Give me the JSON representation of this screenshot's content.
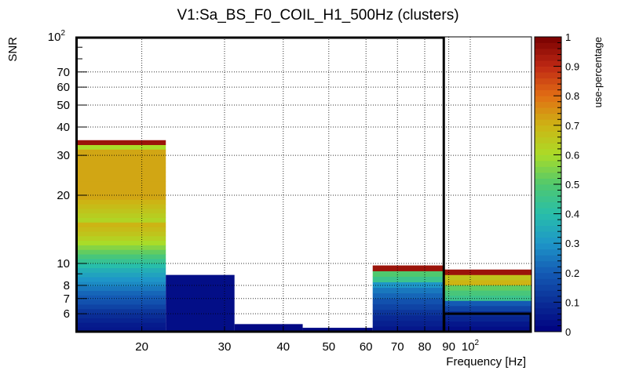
{
  "chart_data": {
    "type": "heatmap",
    "title": "V1:Sa_BS_F0_COIL_H1_500Hz (clusters)",
    "xlabel": "Frequency [Hz]",
    "ylabel": "SNR",
    "colorbar_label": "use-percentage",
    "x_scale": "log",
    "y_scale": "log",
    "xlim": [
      14.5,
      135
    ],
    "ylim": [
      5,
      100
    ],
    "x_ticks": [
      {
        "value": 20,
        "label": "20"
      },
      {
        "value": 30,
        "label": "30"
      },
      {
        "value": 40,
        "label": "40"
      },
      {
        "value": 50,
        "label": "50"
      },
      {
        "value": 60,
        "label": "60"
      },
      {
        "value": 70,
        "label": "70"
      },
      {
        "value": 80,
        "label": "80"
      },
      {
        "value": 90,
        "label": "90"
      },
      {
        "value": 100,
        "label": "10",
        "sup": "2"
      }
    ],
    "y_ticks": [
      {
        "value": 6,
        "label": "6"
      },
      {
        "value": 7,
        "label": "7"
      },
      {
        "value": 8,
        "label": "8"
      },
      {
        "value": 10,
        "label": "10"
      },
      {
        "value": 20,
        "label": "20"
      },
      {
        "value": 30,
        "label": "30"
      },
      {
        "value": 40,
        "label": "40"
      },
      {
        "value": 50,
        "label": "50"
      },
      {
        "value": 60,
        "label": "60"
      },
      {
        "value": 70,
        "label": "70"
      },
      {
        "value": 100,
        "label": "10",
        "sup": "2"
      }
    ],
    "colorbar_ticks": [
      "0",
      "0.1",
      "0.2",
      "0.3",
      "0.4",
      "0.5",
      "0.6",
      "0.7",
      "0.8",
      "0.9",
      "1"
    ],
    "grid": true,
    "columns": [
      {
        "f_low": 14.5,
        "f_high": 22.5,
        "snr_max": 35,
        "use": [
          0.05,
          0.06,
          0.08,
          0.1,
          0.12,
          0.15,
          0.18,
          0.2,
          0.22,
          0.25,
          0.28,
          0.3,
          0.33,
          0.36,
          0.4,
          0.44,
          0.48,
          0.52,
          0.56,
          0.6,
          0.63,
          0.66,
          0.68,
          0.7,
          0.62,
          0.64,
          0.66,
          0.68,
          0.7,
          0.72,
          0.72,
          0.72,
          0.72,
          0.72,
          0.72,
          0.72,
          0.72,
          0.72,
          0.72,
          0.72,
          0.6,
          0.95
        ]
      },
      {
        "f_low": 22.5,
        "f_high": 31.5,
        "snr_max": 8.9,
        "use": [
          0.03
        ]
      },
      {
        "f_low": 31.5,
        "f_high": 44,
        "snr_max": 5.4,
        "use": [
          0.02
        ]
      },
      {
        "f_low": 44,
        "f_high": 62,
        "snr_max": 5.2,
        "use": [
          0.02
        ]
      },
      {
        "f_low": 62,
        "f_high": 88,
        "snr_max": 9.8,
        "use": [
          0.05,
          0.07,
          0.09,
          0.12,
          0.15,
          0.18,
          0.22,
          0.25,
          0.3,
          0.45,
          0.5,
          0.95
        ]
      },
      {
        "f_low": 88,
        "f_high": 135,
        "snr_max": 9.4,
        "use": [
          0.03,
          0.05,
          0.08,
          0.1,
          0.15,
          0.2,
          0.45,
          0.48,
          0.52,
          0.7,
          0.66,
          0.95
        ]
      }
    ],
    "outline": {
      "f_low": 14.5,
      "f_high": 88,
      "snr_high": 100,
      "right_f_low": 88,
      "right_f_high": 135,
      "right_snr_low": 6
    }
  }
}
